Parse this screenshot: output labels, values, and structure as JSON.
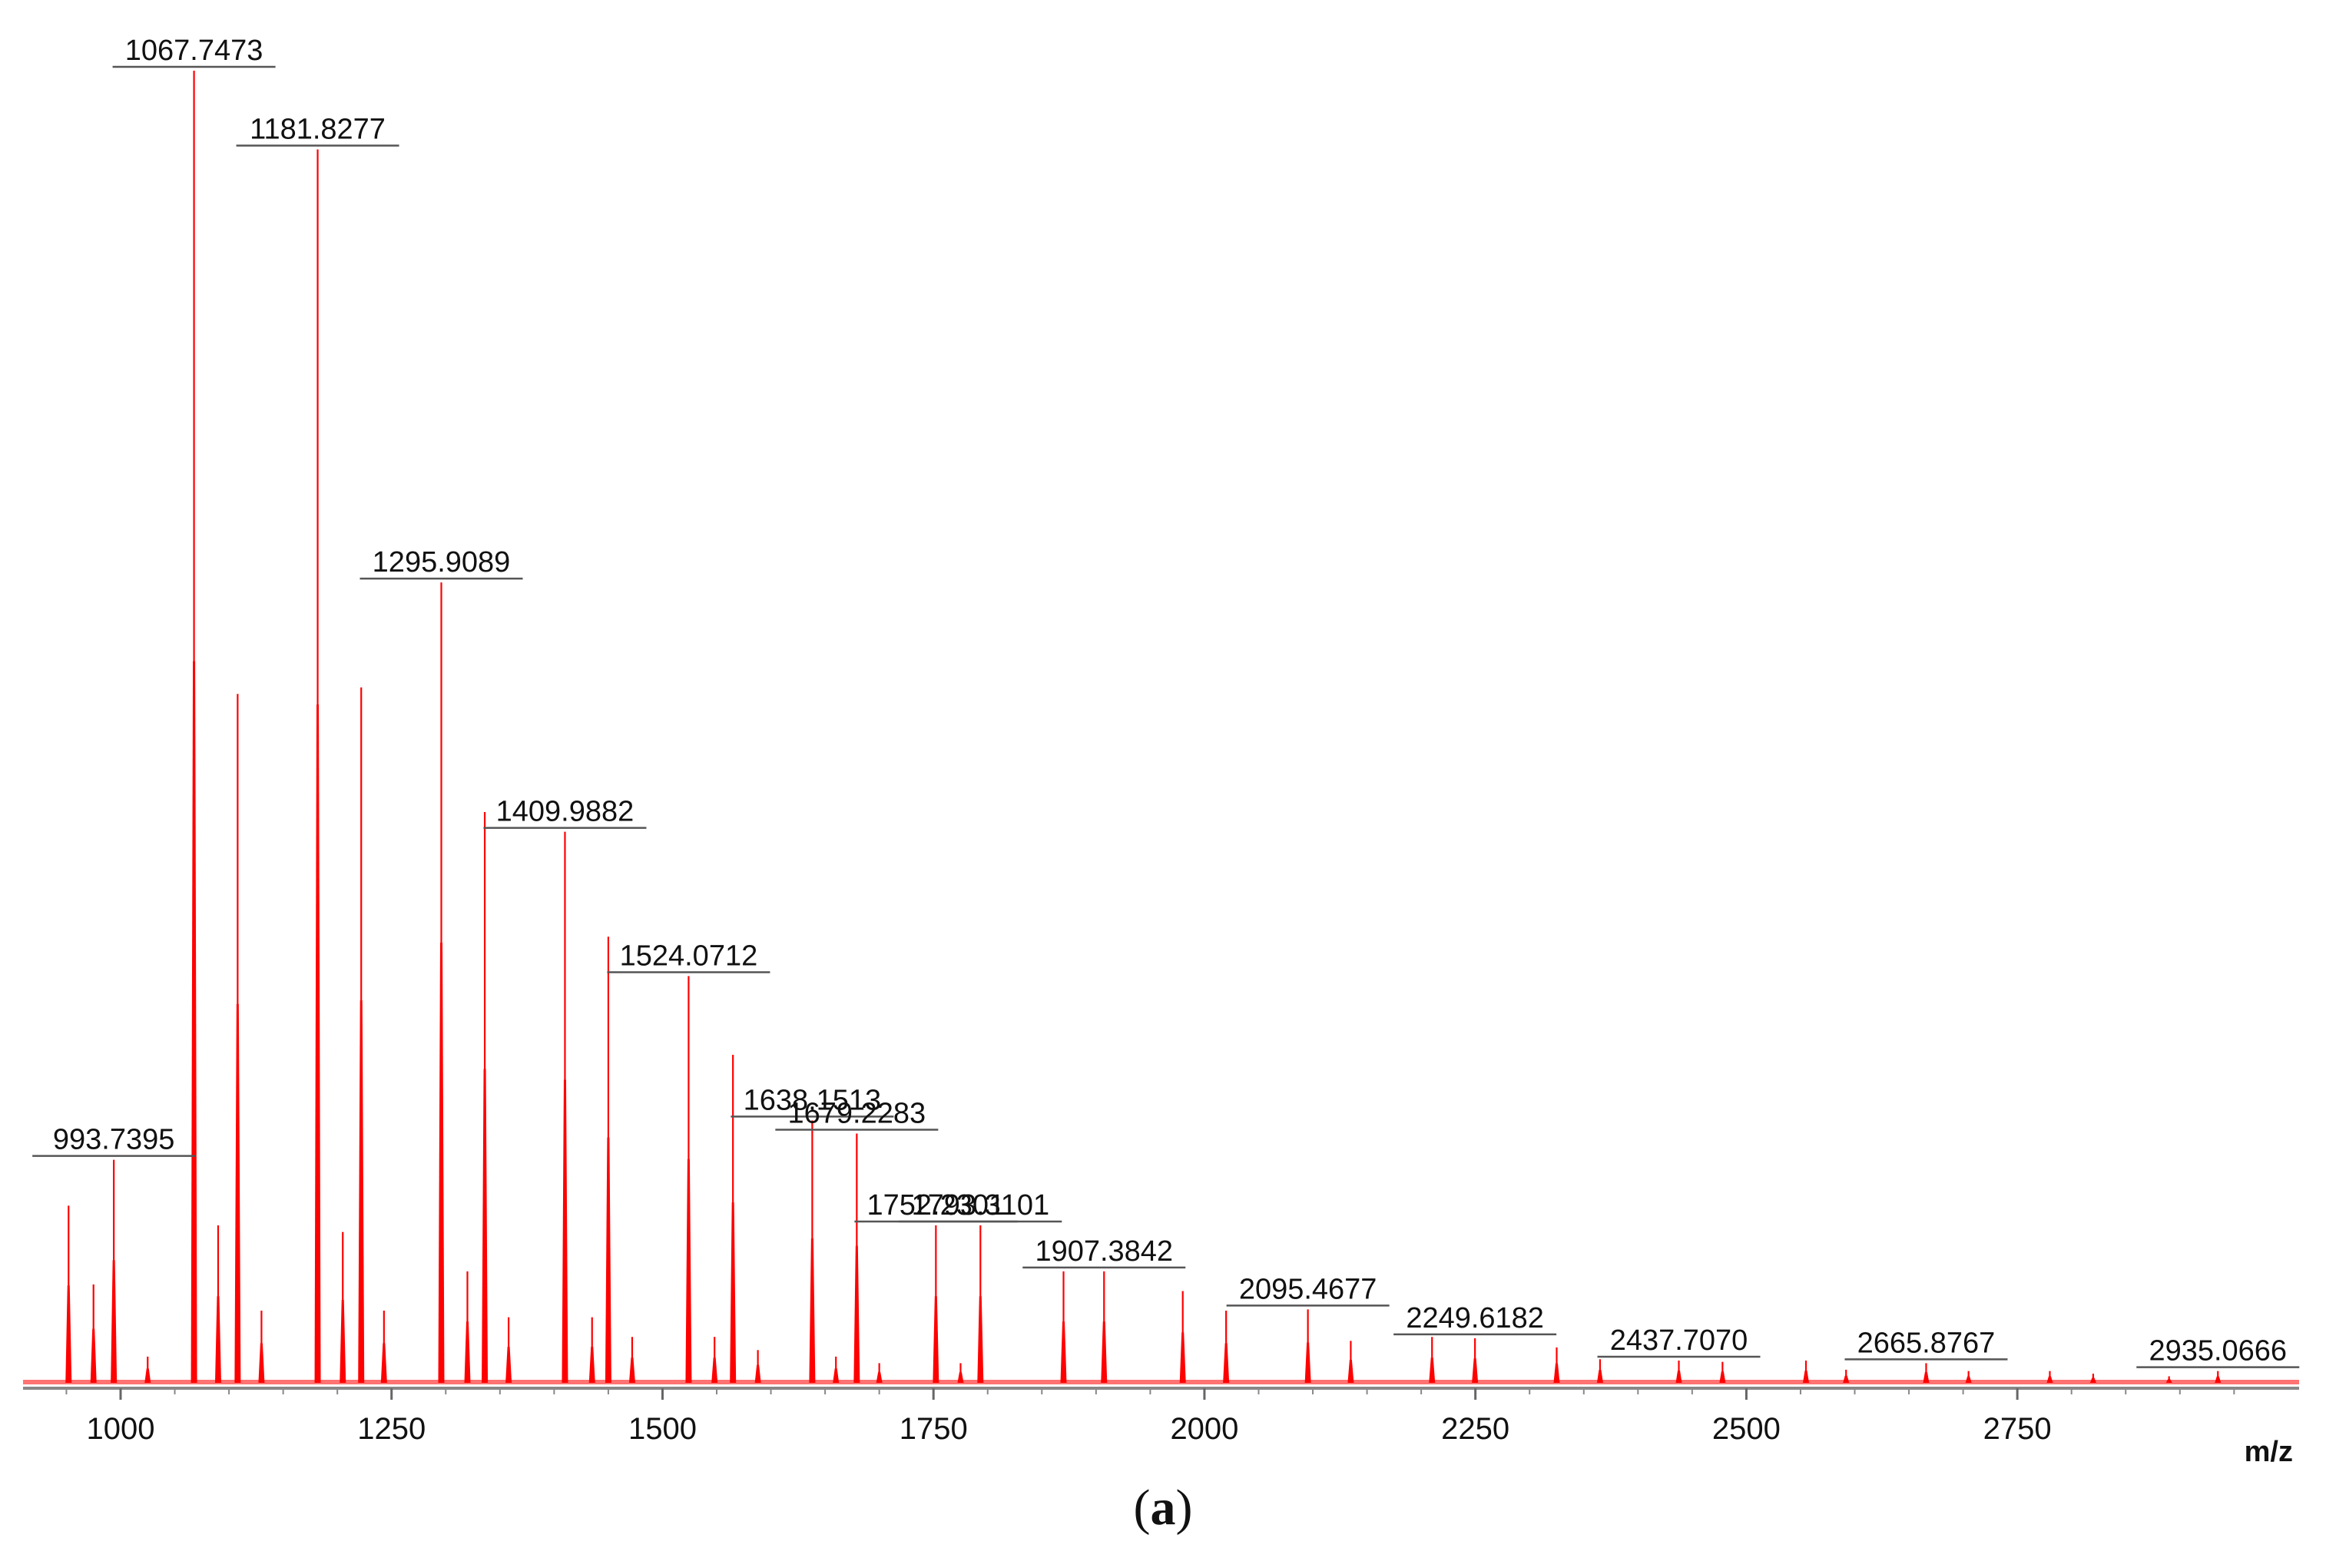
{
  "caption": {
    "open": "(",
    "letter": "a",
    "close": ")"
  },
  "chart_data": {
    "type": "line",
    "title": "",
    "xlabel": "m/z",
    "ylabel": "",
    "xlim": [
      910,
      3010
    ],
    "ylim": [
      0,
      100
    ],
    "x_ticks": [
      1000,
      1250,
      1500,
      1750,
      2000,
      2250,
      2500,
      2750
    ],
    "color": "#ff0000",
    "annotated_peaks": [
      {
        "mz": 993.7395,
        "label": "993.7395",
        "intensity": 17
      },
      {
        "mz": 1067.7473,
        "label": "1067.7473",
        "intensity": 100
      },
      {
        "mz": 1181.8277,
        "label": "1181.8277",
        "intensity": 94
      },
      {
        "mz": 1295.9089,
        "label": "1295.9089",
        "intensity": 61
      },
      {
        "mz": 1409.9882,
        "label": "1409.9882",
        "intensity": 42
      },
      {
        "mz": 1524.0712,
        "label": "1524.0712",
        "intensity": 31
      },
      {
        "mz": 1638.1513,
        "label": "1638.1513",
        "intensity": 20
      },
      {
        "mz": 1679.2283,
        "label": "1679.2283",
        "intensity": 19
      },
      {
        "mz": 1752.2301,
        "label": "1752.2301",
        "intensity": 12
      },
      {
        "mz": 1793.3101,
        "label": "1793.3101",
        "intensity": 12
      },
      {
        "mz": 1907.3842,
        "label": "1907.3842",
        "intensity": 8.5
      },
      {
        "mz": 2095.4677,
        "label": "2095.4677",
        "intensity": 5.6
      },
      {
        "mz": 2249.6182,
        "label": "2249.6182",
        "intensity": 3.4
      },
      {
        "mz": 2437.707,
        "label": "2437.7070",
        "intensity": 1.7
      },
      {
        "mz": 2665.8767,
        "label": "2665.8767",
        "intensity": 1.5
      },
      {
        "mz": 2935.0666,
        "label": "2935.0666",
        "intensity": 0.9
      }
    ],
    "other_peaks": [
      {
        "mz": 952,
        "intensity": 13.5
      },
      {
        "mz": 975,
        "intensity": 7.5
      },
      {
        "mz": 1025,
        "intensity": 2
      },
      {
        "mz": 1090,
        "intensity": 12
      },
      {
        "mz": 1108,
        "intensity": 52.5
      },
      {
        "mz": 1130,
        "intensity": 5.5
      },
      {
        "mz": 1205,
        "intensity": 11.5
      },
      {
        "mz": 1222,
        "intensity": 53
      },
      {
        "mz": 1243,
        "intensity": 5.5
      },
      {
        "mz": 1320,
        "intensity": 8.5
      },
      {
        "mz": 1336,
        "intensity": 43.5
      },
      {
        "mz": 1358,
        "intensity": 5
      },
      {
        "mz": 1435,
        "intensity": 5
      },
      {
        "mz": 1450,
        "intensity": 34
      },
      {
        "mz": 1472,
        "intensity": 3.5
      },
      {
        "mz": 1548,
        "intensity": 3.5
      },
      {
        "mz": 1565,
        "intensity": 25
      },
      {
        "mz": 1588,
        "intensity": 2.5
      },
      {
        "mz": 1660,
        "intensity": 2
      },
      {
        "mz": 1700,
        "intensity": 1.5
      },
      {
        "mz": 1775,
        "intensity": 1.5
      },
      {
        "mz": 1870,
        "intensity": 8.5
      },
      {
        "mz": 1980,
        "intensity": 7
      },
      {
        "mz": 2020,
        "intensity": 5.5
      },
      {
        "mz": 2135,
        "intensity": 3.2
      },
      {
        "mz": 2210,
        "intensity": 3.5
      },
      {
        "mz": 2325,
        "intensity": 2.7
      },
      {
        "mz": 2365,
        "intensity": 1.8
      },
      {
        "mz": 2478,
        "intensity": 1.6
      },
      {
        "mz": 2555,
        "intensity": 1.7
      },
      {
        "mz": 2592,
        "intensity": 1
      },
      {
        "mz": 2705,
        "intensity": 0.9
      },
      {
        "mz": 2780,
        "intensity": 0.9
      },
      {
        "mz": 2820,
        "intensity": 0.7
      },
      {
        "mz": 2890,
        "intensity": 0.5
      }
    ]
  }
}
